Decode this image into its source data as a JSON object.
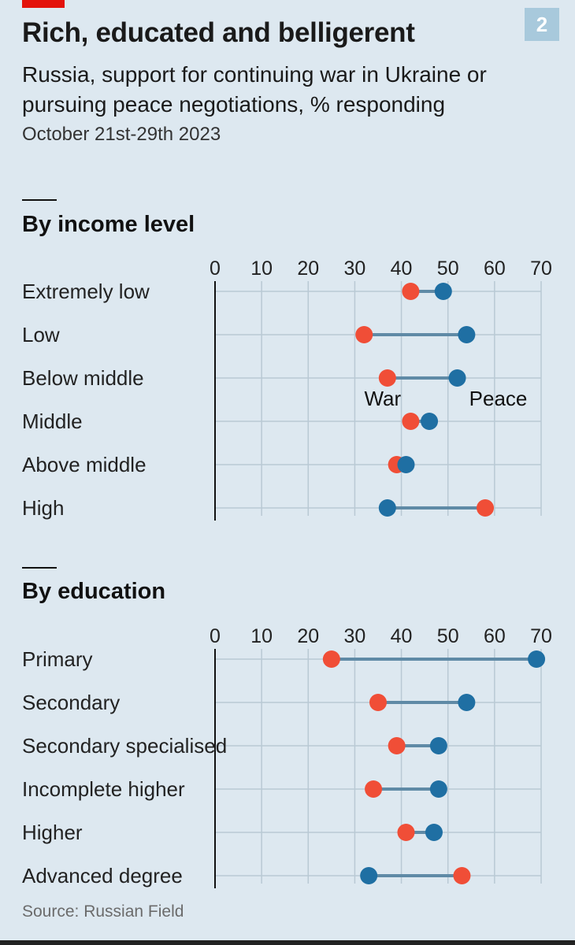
{
  "header": {
    "title": "Rich, educated and belligerent",
    "subtitle": "Russia, support for continuing war in Ukraine or pursuing peace negotiations, % responding",
    "date": "October 21st-29th 2023",
    "chart_number": "2"
  },
  "source": "Source: Russian Field",
  "colors": {
    "war": "#f04e37",
    "peace": "#1f6fa3",
    "connector": "#5f8aa6",
    "grid": "#b9c9d4"
  },
  "chart_data": [
    {
      "type": "dot",
      "title": "By income level",
      "xlim": [
        0,
        70
      ],
      "ticks": [
        "0",
        "10",
        "20",
        "30",
        "40",
        "50",
        "60",
        "70"
      ],
      "categories": [
        "Extremely low",
        "Low",
        "Below middle",
        "Middle",
        "Above middle",
        "High"
      ],
      "series": [
        {
          "name": "War",
          "values": [
            42,
            32,
            37,
            42,
            39,
            58
          ]
        },
        {
          "name": "Peace",
          "values": [
            49,
            54,
            52,
            46,
            41,
            37
          ]
        }
      ],
      "annotations": [
        "War",
        "Peace"
      ]
    },
    {
      "type": "dot",
      "title": "By education",
      "xlim": [
        0,
        70
      ],
      "ticks": [
        "0",
        "10",
        "20",
        "30",
        "40",
        "50",
        "60",
        "70"
      ],
      "categories": [
        "Primary",
        "Secondary",
        "Secondary specialised",
        "Incomplete higher",
        "Higher",
        "Advanced degree"
      ],
      "series": [
        {
          "name": "War",
          "values": [
            25,
            35,
            39,
            34,
            41,
            53
          ]
        },
        {
          "name": "Peace",
          "values": [
            69,
            54,
            48,
            48,
            47,
            33
          ]
        }
      ]
    }
  ]
}
